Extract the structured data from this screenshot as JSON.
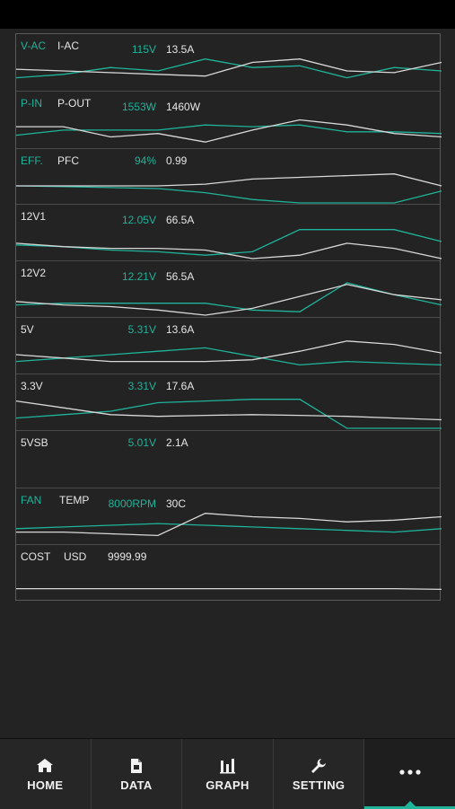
{
  "colors": {
    "accent": "#1fb39a",
    "line_white": "#d8d8d8",
    "background": "#232323"
  },
  "rows": [
    {
      "label1": "V-AC",
      "label1_color": "teal",
      "label2": "I-AC",
      "value1": "115V",
      "value2": "13.5A",
      "series_white": [
        0.55,
        0.5,
        0.45,
        0.4,
        0.35,
        0.75,
        0.85,
        0.5,
        0.45,
        0.75
      ],
      "series_teal": [
        0.3,
        0.4,
        0.6,
        0.5,
        0.85,
        0.6,
        0.65,
        0.3,
        0.6,
        0.5
      ]
    },
    {
      "label1": "P-IN",
      "label1_color": "teal",
      "label2": "P-OUT",
      "value1": "1553W",
      "value2": "1460W",
      "series_white": [
        0.55,
        0.55,
        0.25,
        0.35,
        0.1,
        0.45,
        0.75,
        0.6,
        0.35,
        0.25
      ],
      "series_teal": [
        0.3,
        0.45,
        0.45,
        0.45,
        0.6,
        0.55,
        0.6,
        0.4,
        0.4,
        0.35
      ]
    },
    {
      "label1": "EFF.",
      "label1_color": "teal",
      "label2": "PFC",
      "value1": "94%",
      "value2": "0.99",
      "series_white": [
        0.5,
        0.5,
        0.5,
        0.5,
        0.55,
        0.7,
        0.75,
        0.8,
        0.85,
        0.5
      ],
      "series_teal": [
        0.5,
        0.48,
        0.45,
        0.42,
        0.3,
        0.1,
        0.0,
        0.0,
        0.0,
        0.35
      ]
    },
    {
      "label1": "12V1",
      "label1_color": "white",
      "label2": "",
      "value1": "12.05V",
      "value2": "66.5A",
      "series_white": [
        0.45,
        0.35,
        0.3,
        0.3,
        0.25,
        0.0,
        0.1,
        0.45,
        0.3,
        0.0
      ],
      "series_teal": [
        0.4,
        0.35,
        0.25,
        0.2,
        0.1,
        0.2,
        0.85,
        0.85,
        0.85,
        0.5
      ]
    },
    {
      "label1": "12V2",
      "label1_color": "white",
      "label2": "",
      "value1": "12.21V",
      "value2": "56.5A",
      "series_white": [
        0.4,
        0.3,
        0.25,
        0.15,
        0.0,
        0.2,
        0.55,
        0.9,
        0.6,
        0.45
      ],
      "series_teal": [
        0.3,
        0.35,
        0.35,
        0.35,
        0.35,
        0.15,
        0.1,
        0.95,
        0.6,
        0.3
      ]
    },
    {
      "label1": "5V",
      "label1_color": "white",
      "label2": "",
      "value1": "5.31V",
      "value2": "13.6A",
      "series_white": [
        0.5,
        0.4,
        0.3,
        0.3,
        0.3,
        0.35,
        0.6,
        0.9,
        0.8,
        0.55
      ],
      "series_teal": [
        0.3,
        0.4,
        0.5,
        0.6,
        0.7,
        0.45,
        0.2,
        0.3,
        0.25,
        0.2
      ]
    },
    {
      "label1": "3.3V",
      "label1_color": "white",
      "label2": "",
      "value1": "3.31V",
      "value2": "17.6A",
      "series_white": [
        0.8,
        0.6,
        0.4,
        0.35,
        0.38,
        0.4,
        0.38,
        0.35,
        0.3,
        0.25
      ],
      "series_teal": [
        0.3,
        0.4,
        0.5,
        0.75,
        0.8,
        0.85,
        0.85,
        0.0,
        0.0,
        0.0
      ]
    },
    {
      "label1": "5VSB",
      "label1_color": "white",
      "label2": "",
      "value1": "5.01V",
      "value2": "2.1A",
      "series_white": [],
      "series_teal": []
    },
    {
      "label1": "FAN",
      "label1_color": "teal",
      "label2": "TEMP",
      "value1": "8000RPM",
      "value2": "30C",
      "series_white": [
        0.3,
        0.3,
        0.25,
        0.2,
        0.85,
        0.75,
        0.7,
        0.6,
        0.65,
        0.75
      ],
      "series_teal": [
        0.4,
        0.45,
        0.5,
        0.55,
        0.5,
        0.45,
        0.4,
        0.35,
        0.3,
        0.4
      ]
    },
    {
      "label1": "COST",
      "label1_color": "white",
      "label2": "USD",
      "value1": "9999.99",
      "value2": "",
      "series_white": [
        0.3,
        0.3,
        0.3,
        0.3,
        0.3,
        0.3,
        0.3,
        0.3,
        0.3,
        0.28
      ],
      "series_teal": []
    }
  ],
  "nav": [
    {
      "label": "HOME",
      "icon": "home-icon"
    },
    {
      "label": "DATA",
      "icon": "document-icon"
    },
    {
      "label": "GRAPH",
      "icon": "bar-chart-icon"
    },
    {
      "label": "SETTING",
      "icon": "wrench-icon"
    },
    {
      "label": "",
      "icon": "more-icon"
    }
  ]
}
